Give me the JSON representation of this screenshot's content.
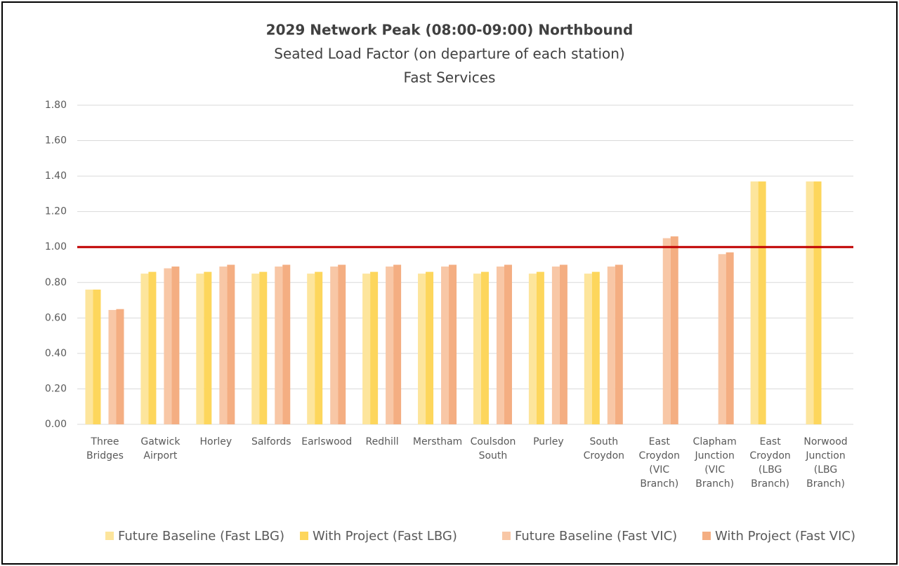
{
  "chart_data": {
    "type": "bar",
    "title": "2029 Network Peak (08:00-09:00) Northbound",
    "subtitle": "Seated Load Factor (on departure of each station)",
    "subtitle2": "Fast Services",
    "categories": [
      "Three Bridges",
      "Gatwick Airport",
      "Horley",
      "Salfords",
      "Earlswood",
      "Redhill",
      "Merstham",
      "Coulsdon South",
      "Purley",
      "South Croydon",
      "East Croydon (VIC Branch)",
      "Clapham Junction (VIC Branch)",
      "East Croydon (LBG Branch)",
      "Norwood Junction (LBG Branch)"
    ],
    "series": [
      {
        "name": "Future Baseline (Fast LBG)",
        "color": "#fde59c",
        "values": [
          0.76,
          0.85,
          0.85,
          0.85,
          0.85,
          0.85,
          0.85,
          0.85,
          0.85,
          0.85,
          null,
          null,
          1.37,
          1.37
        ]
      },
      {
        "name": "With Project (Fast LBG)",
        "color": "#fdd65c",
        "values": [
          0.76,
          0.86,
          0.86,
          0.86,
          0.86,
          0.86,
          0.86,
          0.86,
          0.86,
          0.86,
          null,
          null,
          1.37,
          1.37
        ]
      },
      {
        "name": "Future Baseline (Fast VIC)",
        "color": "#f8c7a6",
        "values": [
          0.645,
          0.88,
          0.89,
          0.89,
          0.89,
          0.89,
          0.89,
          0.89,
          0.89,
          0.89,
          1.05,
          0.96,
          null,
          null
        ]
      },
      {
        "name": "With Project (Fast VIC)",
        "color": "#f4ae82",
        "values": [
          0.65,
          0.89,
          0.9,
          0.9,
          0.9,
          0.9,
          0.9,
          0.9,
          0.9,
          0.9,
          1.06,
          0.97,
          null,
          null
        ]
      }
    ],
    "ylim": [
      0,
      1.8
    ],
    "yticks": [
      {
        "value": 0,
        "label": "0.00"
      },
      {
        "value": 0.2,
        "label": "0.20"
      },
      {
        "value": 0.4,
        "label": "0.40"
      },
      {
        "value": 0.6,
        "label": "0.60"
      },
      {
        "value": 0.8,
        "label": "0.80"
      },
      {
        "value": 1,
        "label": "1.00"
      },
      {
        "value": 1.2,
        "label": "1.20"
      },
      {
        "value": 1.4,
        "label": "1.40"
      },
      {
        "value": 1.6,
        "label": "1.60"
      },
      {
        "value": 1.8,
        "label": "1.80"
      }
    ],
    "grid": true,
    "reference_line": {
      "value": 1,
      "color": "#c00000"
    },
    "legend": "bottom"
  }
}
